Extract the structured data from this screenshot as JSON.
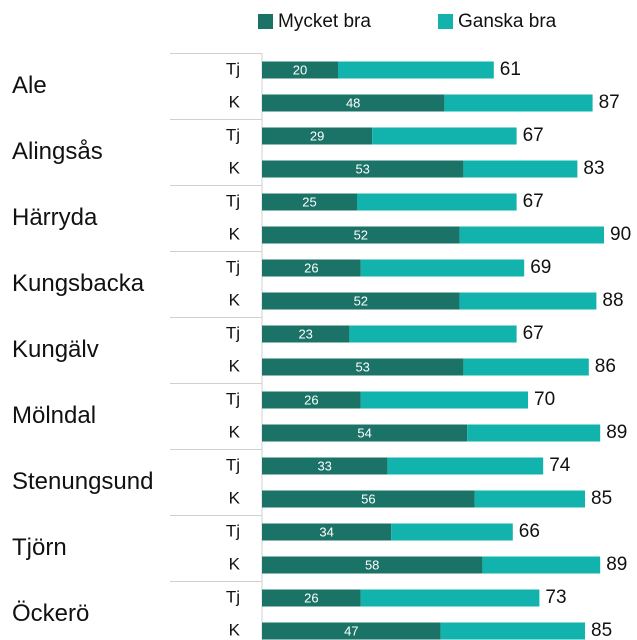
{
  "chart_data": {
    "type": "stacked-bar-horizontal",
    "groups": [
      "Ale",
      "Alingsås",
      "Härryda",
      "Kungsbacka",
      "Kungälv",
      "Mölndal",
      "Stenungsund",
      "Tjörn",
      "Öckerö"
    ],
    "categories": [
      "Tj",
      "K",
      "Tj",
      "K",
      "Tj",
      "K",
      "Tj",
      "K",
      "Tj",
      "K",
      "Tj",
      "K",
      "Tj",
      "K",
      "Tj",
      "K",
      "Tj",
      "K"
    ],
    "series": [
      {
        "name": "Mycket bra",
        "color": "#1b7367",
        "values": [
          20,
          48,
          29,
          53,
          25,
          52,
          26,
          52,
          23,
          53,
          26,
          54,
          33,
          56,
          34,
          58,
          26,
          47
        ]
      },
      {
        "name": "Ganska bra",
        "color": "#12b3ad",
        "values": [
          41,
          39,
          38,
          30,
          42,
          38,
          43,
          36,
          44,
          33,
          44,
          35,
          41,
          29,
          32,
          31,
          47,
          38
        ]
      }
    ],
    "totals": [
      61,
      87,
      67,
      83,
      67,
      90,
      69,
      88,
      67,
      86,
      70,
      89,
      74,
      85,
      66,
      89,
      73,
      85
    ],
    "xlim": [
      0,
      100
    ],
    "legend": "top"
  }
}
